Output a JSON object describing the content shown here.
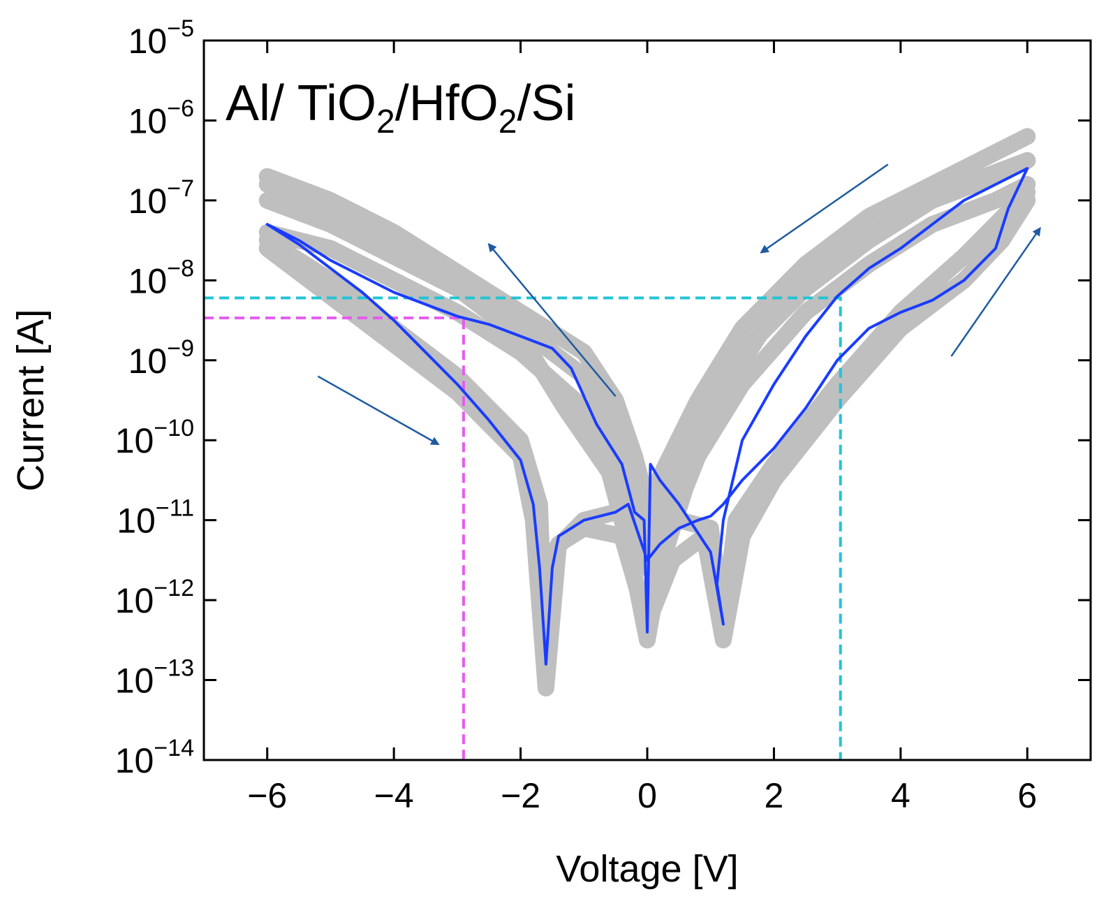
{
  "chart_data": {
    "type": "line",
    "title": {
      "prefix": "Al/ TiO",
      "sub1": "2",
      "mid": "/HfO",
      "sub2": "2",
      "suffix": "/Si"
    },
    "xlabel": "Voltage [V]",
    "ylabel": "Current [A]",
    "xlim": [
      -7,
      7
    ],
    "ylim_log10": [
      -14,
      -5
    ],
    "y_scale": "log",
    "x_ticks": [
      -6,
      -4,
      -2,
      0,
      2,
      4,
      6
    ],
    "x_tick_labels": [
      "−6",
      "−4",
      "−2",
      "0",
      "2",
      "4",
      "6"
    ],
    "y_ticks_exp": [
      -14,
      -13,
      -12,
      -11,
      -10,
      -9,
      -8,
      -7,
      -6,
      -5
    ],
    "y_tick_base": "10",
    "y_tick_exps": [
      "−14",
      "−13",
      "−12",
      "−11",
      "−10",
      "−9",
      "−8",
      "−7",
      "−6",
      "−5"
    ],
    "colors": {
      "highlight": "#1a3cff",
      "background_cycles": "#bfbfbf",
      "marker_cyan": "#22c4d4",
      "marker_magenta": "#e45cf0",
      "arrow": "#1f5aa0",
      "axis": "#000000"
    },
    "series": [
      {
        "name": "cycle-1",
        "role": "background",
        "points": [
          [
            -6,
            -6.7
          ],
          [
            -5,
            -7.0
          ],
          [
            -4,
            -7.4
          ],
          [
            -3,
            -7.9
          ],
          [
            -2,
            -8.4
          ],
          [
            -1,
            -8.9
          ],
          [
            -0.5,
            -9.5
          ],
          [
            -0.2,
            -10.2
          ],
          [
            0,
            -10.8
          ],
          [
            0.3,
            -10.3
          ],
          [
            0.8,
            -9.5
          ],
          [
            1.5,
            -8.6
          ],
          [
            2.5,
            -7.8
          ],
          [
            3.5,
            -7.2
          ],
          [
            4.5,
            -6.8
          ],
          [
            5.5,
            -6.4
          ],
          [
            6,
            -6.2
          ]
        ]
      },
      {
        "name": "cycle-2",
        "role": "background",
        "points": [
          [
            -6,
            -7.0
          ],
          [
            -5,
            -7.3
          ],
          [
            -4,
            -7.7
          ],
          [
            -3,
            -8.1
          ],
          [
            -2,
            -8.6
          ],
          [
            -1,
            -9.2
          ],
          [
            -0.5,
            -9.9
          ],
          [
            -0.2,
            -10.6
          ],
          [
            0,
            -11.2
          ],
          [
            0.3,
            -10.6
          ],
          [
            0.8,
            -9.8
          ],
          [
            1.5,
            -8.9
          ],
          [
            2.5,
            -8.1
          ],
          [
            3.5,
            -7.5
          ],
          [
            4.5,
            -7.0
          ],
          [
            5.5,
            -6.7
          ],
          [
            6,
            -6.5
          ]
        ]
      },
      {
        "name": "cycle-3",
        "role": "background",
        "points": [
          [
            -6,
            -7.4
          ],
          [
            -5,
            -7.6
          ],
          [
            -4,
            -8.0
          ],
          [
            -3,
            -8.4
          ],
          [
            -2,
            -8.9
          ],
          [
            -1,
            -9.6
          ],
          [
            -0.5,
            -10.3
          ],
          [
            -0.2,
            -11.0
          ],
          [
            0,
            -11.6
          ],
          [
            0.3,
            -11.0
          ],
          [
            0.8,
            -10.2
          ],
          [
            1.5,
            -9.3
          ],
          [
            2.5,
            -8.4
          ],
          [
            3.5,
            -7.8
          ],
          [
            4.5,
            -7.3
          ],
          [
            5.5,
            -7.0
          ],
          [
            6,
            -6.8
          ]
        ]
      },
      {
        "name": "cycle-4",
        "role": "background",
        "points": [
          [
            -6,
            -7.5
          ],
          [
            -5,
            -8.0
          ],
          [
            -4,
            -8.6
          ],
          [
            -3,
            -9.2
          ],
          [
            -2,
            -10.0
          ],
          [
            -1.7,
            -10.8
          ],
          [
            -1.6,
            -12.9
          ],
          [
            -1.5,
            -11.4
          ],
          [
            -1,
            -11.0
          ],
          [
            -0.5,
            -10.9
          ],
          [
            0,
            -10.8
          ],
          [
            0.5,
            -11.0
          ],
          [
            1.0,
            -11.1
          ],
          [
            1.2,
            -12.3
          ],
          [
            1.4,
            -11.0
          ],
          [
            2,
            -10.3
          ],
          [
            3,
            -9.3
          ],
          [
            4,
            -8.4
          ],
          [
            5,
            -7.7
          ],
          [
            6,
            -6.9
          ]
        ]
      },
      {
        "name": "cycle-5",
        "role": "background",
        "points": [
          [
            -6,
            -7.6
          ],
          [
            -5,
            -8.2
          ],
          [
            -4,
            -8.8
          ],
          [
            -3,
            -9.4
          ],
          [
            -2,
            -10.2
          ],
          [
            -1.8,
            -11.0
          ],
          [
            -1.6,
            -13.1
          ],
          [
            -1.4,
            -11.3
          ],
          [
            -1,
            -11.1
          ],
          [
            -0.4,
            -11.2
          ],
          [
            0,
            -12.3
          ],
          [
            0.4,
            -11.5
          ],
          [
            0.9,
            -11.2
          ],
          [
            1.2,
            -12.5
          ],
          [
            1.5,
            -11.2
          ],
          [
            2,
            -10.5
          ],
          [
            3,
            -9.5
          ],
          [
            4,
            -8.6
          ],
          [
            5,
            -8.0
          ],
          [
            5.6,
            -7.5
          ],
          [
            6,
            -7.0
          ]
        ]
      },
      {
        "name": "cycle-6",
        "role": "background",
        "points": [
          [
            -6,
            -6.8
          ],
          [
            -5,
            -7.1
          ],
          [
            -4,
            -7.6
          ],
          [
            -3,
            -8.1
          ],
          [
            -2,
            -8.7
          ],
          [
            -1.3,
            -9.6
          ],
          [
            -0.6,
            -10.4
          ],
          [
            -0.3,
            -11.3
          ],
          [
            0,
            -12.5
          ],
          [
            0.2,
            -11.6
          ],
          [
            0.6,
            -10.6
          ],
          [
            1.2,
            -9.4
          ],
          [
            2,
            -8.4
          ],
          [
            3,
            -7.7
          ],
          [
            4,
            -7.2
          ],
          [
            5,
            -6.8
          ],
          [
            6,
            -6.5
          ]
        ]
      },
      {
        "name": "highlight-cycle",
        "role": "highlight",
        "points": [
          [
            -6,
            -7.3
          ],
          [
            -5.5,
            -7.55
          ],
          [
            -5,
            -7.85
          ],
          [
            -4.5,
            -8.15
          ],
          [
            -4,
            -8.5
          ],
          [
            -3.5,
            -8.9
          ],
          [
            -3,
            -9.3
          ],
          [
            -2.5,
            -9.75
          ],
          [
            -2,
            -10.25
          ],
          [
            -1.8,
            -10.8
          ],
          [
            -1.7,
            -11.6
          ],
          [
            -1.6,
            -12.8
          ],
          [
            -1.5,
            -11.6
          ],
          [
            -1.4,
            -11.2
          ],
          [
            -1,
            -11.0
          ],
          [
            -0.5,
            -10.9
          ],
          [
            -0.3,
            -10.8
          ],
          [
            0,
            -11.5
          ],
          [
            0.2,
            -11.3
          ],
          [
            0.5,
            -11.1
          ],
          [
            0.8,
            -11.0
          ],
          [
            1.0,
            -10.95
          ],
          [
            1.2,
            -10.8
          ],
          [
            1.5,
            -10.5
          ],
          [
            2,
            -10.1
          ],
          [
            2.5,
            -9.6
          ],
          [
            3,
            -9.0
          ],
          [
            3.5,
            -8.6
          ],
          [
            4,
            -8.4
          ],
          [
            4.5,
            -8.25
          ],
          [
            5,
            -8.0
          ],
          [
            5.5,
            -7.6
          ],
          [
            5.7,
            -7.1
          ],
          [
            6,
            -6.6
          ],
          [
            5.5,
            -6.8
          ],
          [
            5,
            -7.0
          ],
          [
            4.5,
            -7.3
          ],
          [
            4,
            -7.6
          ],
          [
            3.5,
            -7.85
          ],
          [
            3,
            -8.2
          ],
          [
            2.5,
            -8.7
          ],
          [
            2,
            -9.3
          ],
          [
            1.5,
            -10.0
          ],
          [
            1.2,
            -11.0
          ],
          [
            1.1,
            -11.8
          ],
          [
            1.2,
            -12.3
          ],
          [
            1.0,
            -11.4
          ],
          [
            0.5,
            -10.8
          ],
          [
            0.2,
            -10.5
          ],
          [
            0.05,
            -10.3
          ],
          [
            0,
            -12.4
          ],
          [
            -0.05,
            -11.0
          ],
          [
            -0.2,
            -10.9
          ],
          [
            -0.4,
            -10.3
          ],
          [
            -0.8,
            -9.8
          ],
          [
            -1.2,
            -9.1
          ],
          [
            -1.5,
            -8.85
          ],
          [
            -2,
            -8.7
          ],
          [
            -2.5,
            -8.55
          ],
          [
            -3,
            -8.45
          ],
          [
            -3.5,
            -8.3
          ],
          [
            -4,
            -8.15
          ],
          [
            -4.5,
            -7.95
          ],
          [
            -5,
            -7.75
          ],
          [
            -5.5,
            -7.5
          ],
          [
            -6,
            -7.3
          ]
        ]
      }
    ],
    "reference_lines": [
      {
        "name": "cyan-reference",
        "color": "#22c4d4",
        "x": 3.05,
        "y_log10": -8.22
      },
      {
        "name": "magenta-reference",
        "color": "#e45cf0",
        "x": -2.9,
        "y_log10": -8.47
      }
    ],
    "arrows": [
      {
        "name": "arrow-upper-left",
        "from": [
          -0.5,
          -9.45
        ],
        "to": [
          -2.5,
          -7.55
        ]
      },
      {
        "name": "arrow-lower-left",
        "from": [
          -5.2,
          -9.2
        ],
        "to": [
          -3.3,
          -10.05
        ]
      },
      {
        "name": "arrow-upper-right",
        "from": [
          3.8,
          -6.55
        ],
        "to": [
          1.8,
          -7.65
        ]
      },
      {
        "name": "arrow-lower-right",
        "from": [
          4.8,
          -8.95
        ],
        "to": [
          6.2,
          -7.35
        ]
      }
    ]
  }
}
